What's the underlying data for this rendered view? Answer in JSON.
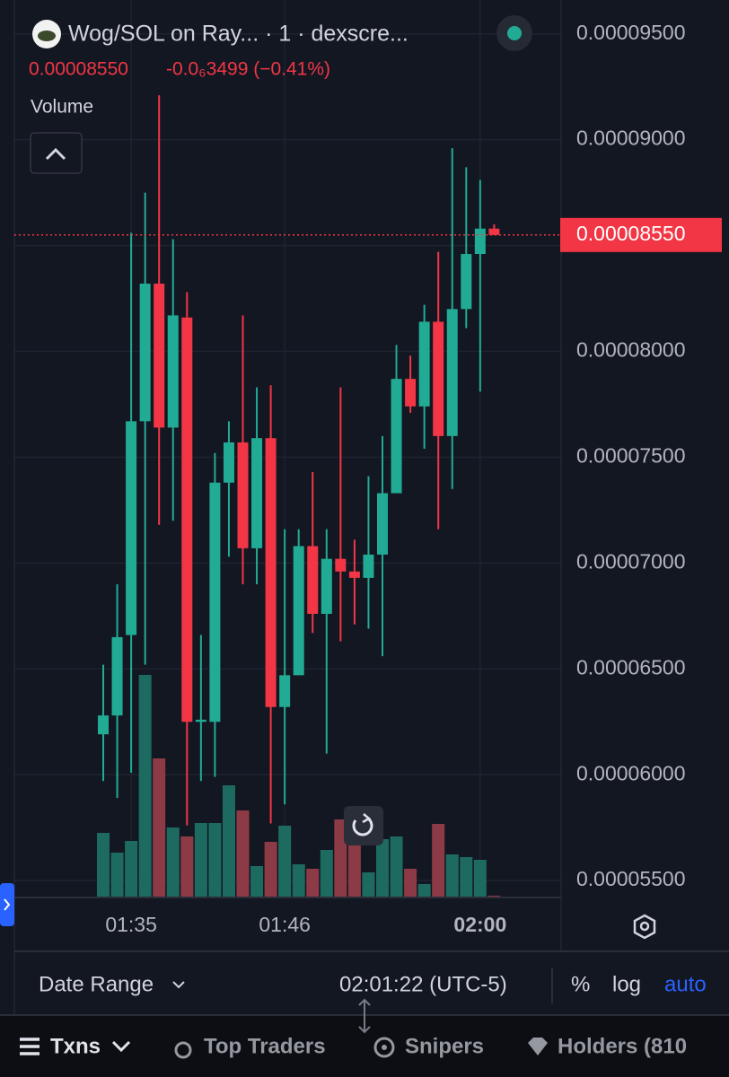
{
  "header": {
    "pair": "Wog/SOL on Ray... · 1 · dexscre...",
    "price": "0.00008550",
    "change": "-0.0₆3499 (−0.41%)",
    "pane_label": "Volume"
  },
  "chart_data": {
    "type": "candlestick",
    "categories": [
      null,
      null,
      "01:35",
      null,
      null,
      null,
      null,
      null,
      null,
      null,
      null,
      null,
      null,
      "01:46",
      null,
      null,
      null,
      null,
      null,
      null,
      null,
      null,
      null,
      null,
      null,
      null,
      null,
      "02:00",
      null
    ],
    "open": [
      6.191e-05,
      6.28e-05,
      6.66e-05,
      7.67e-05,
      8.32e-05,
      7.64e-05,
      8.16e-05,
      6.25e-05,
      6.25e-05,
      7.38e-05,
      7.57e-05,
      7.07e-05,
      7.59e-05,
      6.32e-05,
      6.47e-05,
      7.08e-05,
      6.76e-05,
      7.02e-05,
      6.96e-05,
      6.93e-05,
      7.04e-05,
      7.33e-05,
      7.87e-05,
      7.74e-05,
      8.14e-05,
      7.6e-05,
      8.2e-05,
      8.46e-05,
      8.58e-05
    ],
    "high": [
      6.52e-05,
      6.9e-05,
      8.56e-05,
      8.75e-05,
      9.21e-05,
      8.53e-05,
      8.28e-05,
      6.66e-05,
      7.52e-05,
      7.67e-05,
      8.17e-05,
      7.83e-05,
      7.84e-05,
      7.16e-05,
      7.16e-05,
      7.43e-05,
      7.16e-05,
      7.83e-05,
      7.11e-05,
      7.41e-05,
      7.6e-05,
      8.03e-05,
      7.98e-05,
      8.22e-05,
      8.47e-05,
      8.96e-05,
      8.87e-05,
      8.81e-05,
      8.6e-05
    ],
    "low": [
      5.97e-05,
      5.89e-05,
      6.01e-05,
      6.52e-05,
      7.18e-05,
      7.2e-05,
      5.76e-05,
      5.97e-05,
      5.99e-05,
      7.03e-05,
      6.9e-05,
      6.9e-05,
      5.77e-05,
      5.86e-05,
      6.48e-05,
      6.67e-05,
      6.1e-05,
      6.63e-05,
      6.71e-05,
      6.69e-05,
      6.56e-05,
      7.33e-05,
      7.71e-05,
      7.54e-05,
      7.16e-05,
      7.35e-05,
      8.11e-05,
      7.81e-05,
      8.55e-05
    ],
    "close": [
      6.28e-05,
      6.65e-05,
      7.67e-05,
      8.32e-05,
      7.64e-05,
      8.17e-05,
      6.25e-05,
      6.26e-05,
      7.38e-05,
      7.57e-05,
      7.07e-05,
      7.59e-05,
      6.32e-05,
      6.47e-05,
      7.08e-05,
      6.76e-05,
      7.02e-05,
      6.96e-05,
      6.93e-05,
      7.04e-05,
      7.33e-05,
      7.87e-05,
      7.74e-05,
      8.14e-05,
      7.6e-05,
      8.2e-05,
      8.46e-05,
      8.58e-05,
      8.55e-05
    ],
    "volume": [
      72,
      50,
      63,
      248,
      155,
      78,
      68,
      83,
      83,
      125,
      97,
      35,
      62,
      80,
      37,
      32,
      53,
      87,
      58,
      28,
      65,
      68,
      32,
      15,
      82,
      48,
      45,
      42,
      2
    ],
    "up_color": "#22ab94",
    "down_color": "#f23645",
    "up_volume_color": "#1d6b60",
    "down_volume_color": "#8c3a45",
    "ylim": [
      5.42e-05,
      9.66e-05
    ],
    "yticks": [
      {
        "value": 9.5e-05,
        "label": "0.00009500"
      },
      {
        "value": 9e-05,
        "label": "0.00009000"
      },
      {
        "value": 8.5e-05,
        "label": "0.00008500"
      },
      {
        "value": 8e-05,
        "label": "0.00008000"
      },
      {
        "value": 7.5e-05,
        "label": "0.00007500"
      },
      {
        "value": 7e-05,
        "label": "0.00007000"
      },
      {
        "value": 6.5e-05,
        "label": "0.00006500"
      },
      {
        "value": 6e-05,
        "label": "0.00006000"
      },
      {
        "value": 5.5e-05,
        "label": "0.00005500"
      }
    ],
    "last_price": {
      "value": 8.55e-05,
      "label": "0.00008550"
    },
    "grid": true
  },
  "toolbar": {
    "date_range": "Date Range",
    "clock": "02:01:22 (UTC-5)",
    "percent": "%",
    "log": "log",
    "auto": "auto"
  },
  "tabs": [
    "Txns",
    "Top Traders",
    "Snipers",
    "Holders (810"
  ]
}
